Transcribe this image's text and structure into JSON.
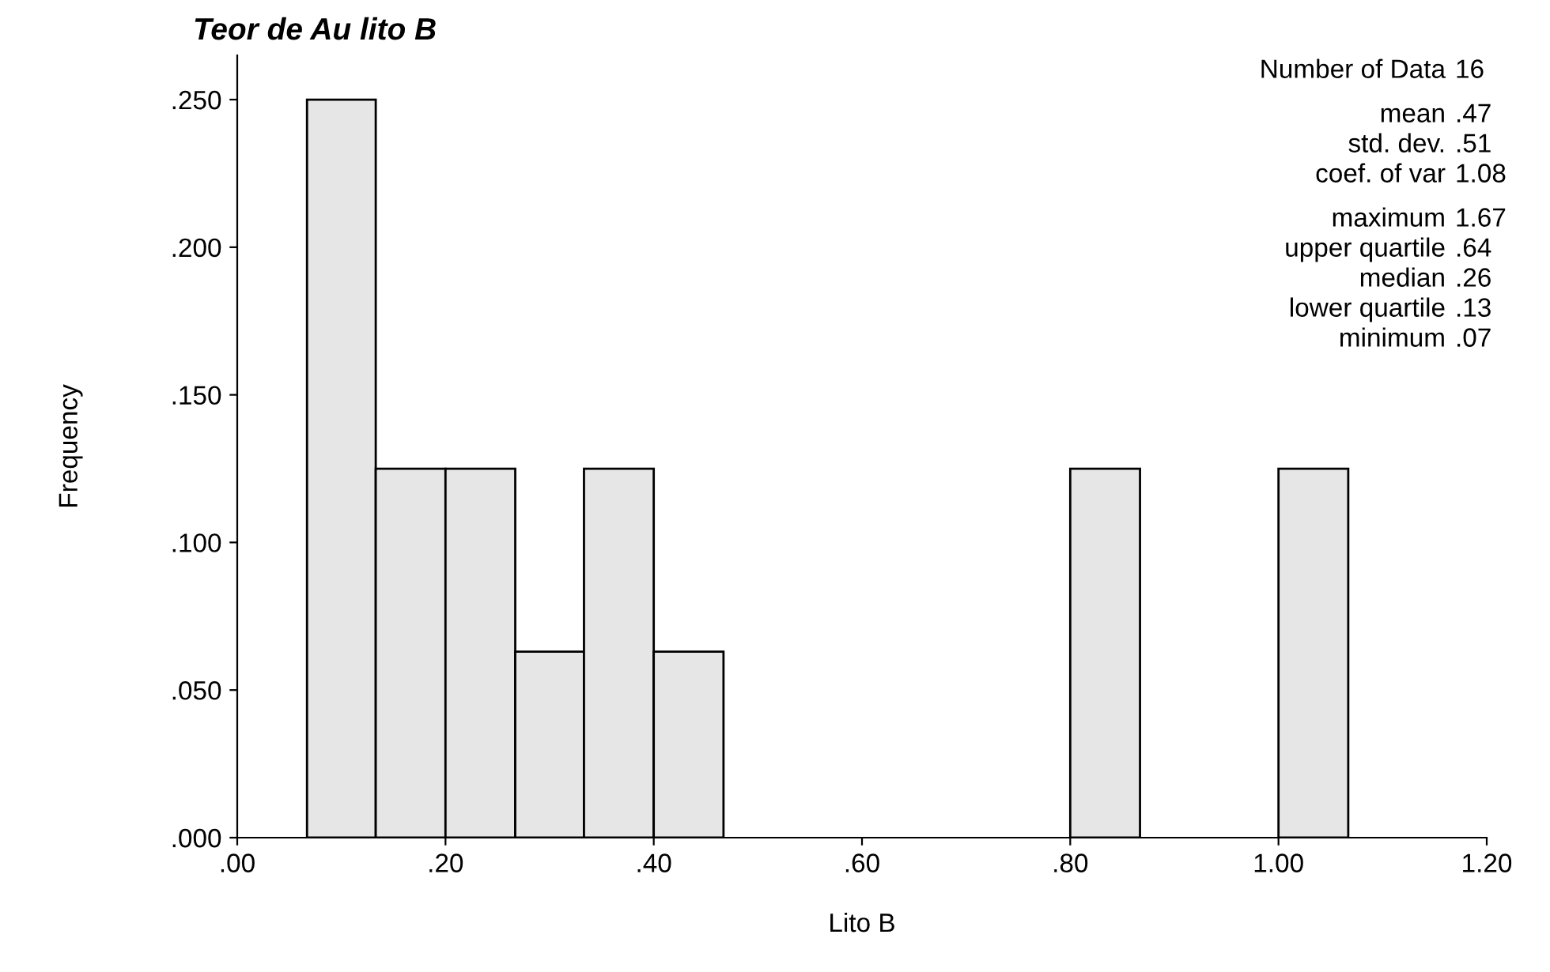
{
  "chart_data": {
    "type": "histogram",
    "title": "Teor de Au lito B",
    "xlabel": "Lito B",
    "ylabel": "Frequency",
    "bins": [
      0.067,
      0.133,
      0.2,
      0.267,
      0.333,
      0.4,
      0.467,
      0.8,
      0.867,
      1.0,
      1.067
    ],
    "values": [
      0.25,
      0.125,
      0.125,
      0.063,
      0.125,
      0.063,
      0,
      0.125,
      0,
      0.125
    ],
    "color": "#e6e6e6",
    "xlim": [
      0,
      1.2
    ],
    "xticks": [
      {
        "value": 0,
        "label": ".00"
      },
      {
        "value": 0.2,
        "label": ".20"
      },
      {
        "value": 0.4,
        "label": ".40"
      },
      {
        "value": 0.6,
        "label": ".60"
      },
      {
        "value": 0.8,
        "label": ".80"
      },
      {
        "value": 1.0,
        "label": "1.00"
      },
      {
        "value": 1.2,
        "label": "1.20"
      }
    ],
    "ylim": [
      0,
      0.265
    ],
    "yticks": [
      {
        "value": 0,
        "label": ".000"
      },
      {
        "value": 0.05,
        "label": ".050"
      },
      {
        "value": 0.1,
        "label": ".100"
      },
      {
        "value": 0.15,
        "label": ".150"
      },
      {
        "value": 0.2,
        "label": ".200"
      },
      {
        "value": 0.25,
        "label": ".250"
      }
    ],
    "grid": false,
    "annotations": [
      "Number of Data 16",
      "mean .47",
      "std. dev. .51",
      "coef. of var 1.08",
      "maximum 1.67",
      "upper quartile .64",
      "median .26",
      "lower quartile .13",
      "minimum .07"
    ]
  }
}
